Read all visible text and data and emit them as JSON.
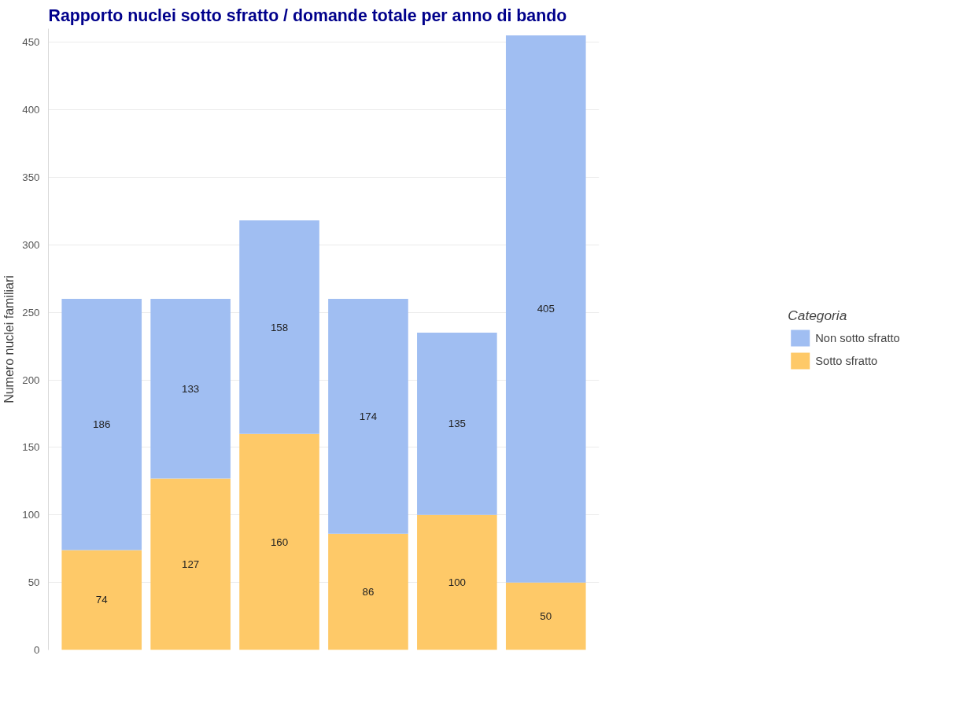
{
  "chart_data": {
    "type": "bar",
    "title": "Rapporto nuclei sotto sfratto / domande totale per anno di bando",
    "ylabel": "Numero nuclei familiari",
    "legend_title": "Categoria",
    "categories": [
      null,
      null,
      null,
      null,
      null,
      null
    ],
    "stacked": true,
    "series": [
      {
        "name": "Sotto sfratto",
        "color": "#fec968",
        "values": [
          74,
          127,
          160,
          86,
          100,
          50
        ]
      },
      {
        "name": "Non sotto sfratto",
        "color": "#a0bef2",
        "values": [
          186,
          133,
          158,
          174,
          135,
          405
        ]
      }
    ],
    "ylim": [
      0,
      460
    ],
    "yticks": [
      0,
      50,
      100,
      150,
      200,
      250,
      300,
      350,
      400,
      450
    ],
    "grid": "y",
    "legend": "right",
    "data_labels": true
  }
}
